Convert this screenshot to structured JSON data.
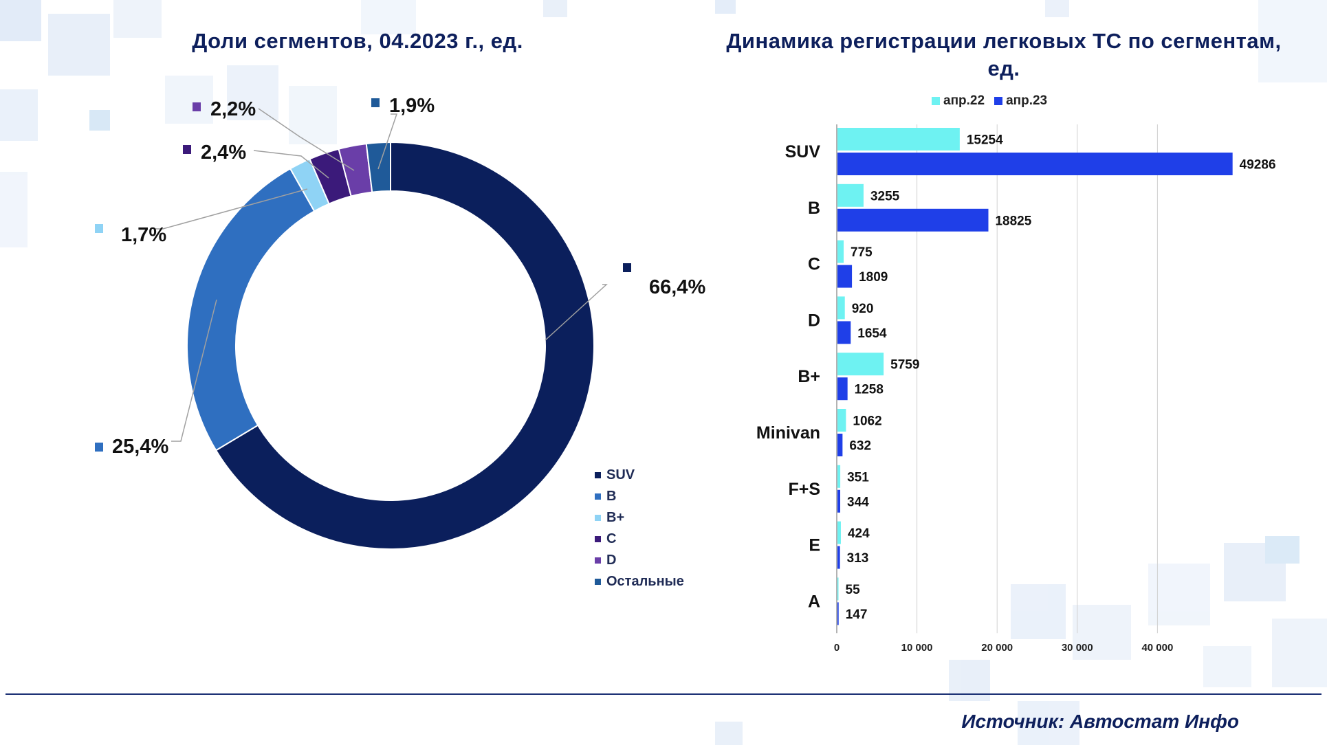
{
  "source": "Источник: Автостат Инфо",
  "chart_data": [
    {
      "type": "pie",
      "variant": "donut",
      "title": "Доли сегментов, 04.2023 г., ед.",
      "slices": [
        {
          "name": "SUV",
          "value": 66.4,
          "label": "66,4%",
          "color": "#0b1f5c"
        },
        {
          "name": "B",
          "value": 25.4,
          "label": "25,4%",
          "color": "#2f6fc0"
        },
        {
          "name": "B+",
          "value": 1.7,
          "label": "1,7%",
          "color": "#8fd3f5"
        },
        {
          "name": "C",
          "value": 2.4,
          "label": "2,4%",
          "color": "#3b1a7a"
        },
        {
          "name": "D",
          "value": 2.2,
          "label": "2,2%",
          "color": "#6a3ea8"
        },
        {
          "name": "Остальные",
          "value": 1.9,
          "label": "1,9%",
          "color": "#1f5a99"
        }
      ],
      "legend": "bottom-right"
    },
    {
      "type": "bar",
      "orientation": "horizontal",
      "title": "Динамика регистрации легковых ТС по сегментам, ед.",
      "categories": [
        "SUV",
        "B",
        "C",
        "D",
        "B+",
        "Minivan",
        "F+S",
        "E",
        "A"
      ],
      "series": [
        {
          "name": "апр.22",
          "color": "#6ef2f2",
          "values": [
            15254,
            3255,
            775,
            920,
            5759,
            1062,
            351,
            424,
            55
          ]
        },
        {
          "name": "апр.23",
          "color": "#1f3fe8",
          "values": [
            49286,
            18825,
            1809,
            1654,
            1258,
            632,
            344,
            313,
            147
          ]
        }
      ],
      "xlim": [
        0,
        50000
      ],
      "xticks": [
        0,
        10000,
        20000,
        30000,
        40000
      ],
      "xtick_labels": [
        "0",
        "10 000",
        "20 000",
        "30 000",
        "40 000"
      ],
      "legend": "top"
    }
  ]
}
